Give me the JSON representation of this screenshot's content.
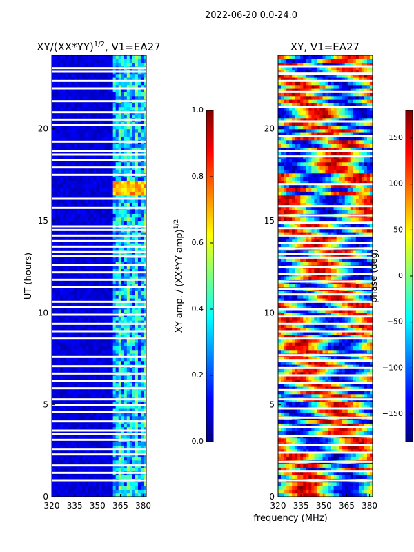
{
  "suptitle": "2022-06-20 0.0-24.0",
  "colors": {
    "jet": [
      "#00007f",
      "#0000ff",
      "#007fff",
      "#00ffff",
      "#7fff7f",
      "#ffff00",
      "#ff7f00",
      "#ff0000",
      "#7f0000"
    ]
  },
  "chart_data": [
    {
      "type": "heatmap",
      "title_main": "XY/(XX*YY)",
      "title_sup": "1/2",
      "title_rest": ", V1=EA27",
      "xlabel": "",
      "ylabel": "UT (hours)",
      "xlim": [
        320,
        382
      ],
      "ylim": [
        0,
        24
      ],
      "xticks": [
        "320",
        "335",
        "350",
        "365",
        "380"
      ],
      "xtick_values": [
        320,
        335,
        350,
        365,
        380
      ],
      "yticks": [
        "0",
        "5",
        "10",
        "15",
        "20"
      ],
      "ytick_values": [
        0,
        5,
        10,
        15,
        20
      ],
      "quantity": "amplitude",
      "colorbar": {
        "label_main": "XY amp. / (XX*YY amp)",
        "label_sup": "1/2",
        "range": [
          0,
          1
        ],
        "ticks": [
          "0.0",
          "0.2",
          "0.4",
          "0.6",
          "0.8",
          "1.0"
        ],
        "tick_values": [
          0,
          0.2,
          0.4,
          0.6,
          0.8,
          1.0
        ]
      },
      "active_band_mhz": [
        360,
        382
      ],
      "bright_time_hours": [
        16.5,
        17.2
      ],
      "gap_hours": [
        0.9,
        1.3,
        1.7,
        2.3,
        2.6,
        3.1,
        3.4,
        3.6,
        4.1,
        4.6,
        5.0,
        5.3,
        5.9,
        6.3,
        6.7,
        7.1,
        7.6,
        8.6,
        9.0,
        9.4,
        9.9,
        10.3,
        10.6,
        11.4,
        11.8,
        12.2,
        12.6,
        13.1,
        13.3,
        13.6,
        13.9,
        14.2,
        14.5,
        14.7,
        15.7,
        16.2,
        17.5,
        17.9,
        18.3,
        18.6,
        18.8,
        19.3,
        20.2,
        20.5,
        20.9,
        21.5,
        22.2,
        22.6,
        23.1,
        23.3
      ]
    },
    {
      "type": "heatmap",
      "title_main": "XY, V1=EA27",
      "title_sup": "",
      "title_rest": "",
      "xlabel": "frequency (MHz)",
      "ylabel": "",
      "xlim": [
        320,
        382
      ],
      "ylim": [
        0,
        24
      ],
      "xticks": [
        "320",
        "335",
        "350",
        "365",
        "380"
      ],
      "xtick_values": [
        320,
        335,
        350,
        365,
        380
      ],
      "yticks": [
        "0",
        "5",
        "10",
        "15",
        "20"
      ],
      "ytick_values": [
        0,
        5,
        10,
        15,
        20
      ],
      "quantity": "phase",
      "colorbar": {
        "label_main": "phase (deg)",
        "label_sup": "",
        "range": [
          -180,
          180
        ],
        "ticks": [
          "−150",
          "−100",
          "−50",
          "0",
          "50",
          "100",
          "150"
        ],
        "tick_values": [
          -150,
          -100,
          -50,
          0,
          50,
          100,
          150
        ]
      },
      "gap_hours": [
        0.9,
        1.4,
        1.9,
        2.4,
        2.8,
        3.3,
        3.8,
        4.3,
        4.8,
        5.3,
        5.8,
        6.2,
        6.6,
        7.0,
        7.4,
        7.7,
        8.6,
        9.0,
        9.4,
        9.8,
        10.2,
        10.6,
        11.0,
        11.3,
        11.7,
        12.1,
        12.5,
        13.0,
        13.2,
        13.5,
        13.8,
        14.2,
        14.6,
        14.9,
        15.3,
        15.8,
        17.0,
        18.5,
        18.8,
        19.6,
        20.4,
        21.2,
        22.0,
        22.6,
        23.0,
        23.4
      ]
    }
  ]
}
